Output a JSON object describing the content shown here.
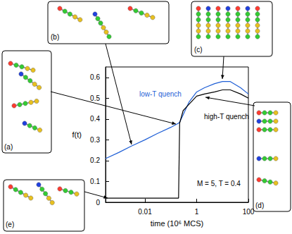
{
  "chart_data": {
    "type": "line",
    "x_label": "time (10⁶ MCS)",
    "y_label": "f(t)",
    "annotation": "M = 5, T = 0.4",
    "panel_labels": [
      "(a)",
      "(b)",
      "(c)",
      "(d)",
      "(e)"
    ],
    "x": [
      0.0003,
      0.001,
      0.003,
      0.01,
      0.03,
      0.1,
      0.2,
      0.22,
      0.3,
      0.5,
      1,
      2,
      5,
      10,
      20,
      50,
      100
    ],
    "series": [
      {
        "name": "low-T quench",
        "color": "#1f5fd6",
        "values": [
          0.21,
          0.24,
          0.27,
          0.3,
          0.33,
          0.36,
          0.38,
          0.385,
          0.42,
          0.48,
          0.53,
          0.55,
          0.57,
          0.58,
          0.58,
          0.55,
          0.52
        ]
      },
      {
        "name": "high-T quench",
        "color": "#000000",
        "values": [
          0.02,
          0.02,
          0.02,
          0.02,
          0.02,
          0.02,
          0.02,
          0.38,
          0.44,
          0.47,
          0.51,
          0.52,
          0.53,
          0.54,
          0.54,
          0.52,
          0.5
        ]
      }
    ],
    "xlim": [
      0.0003,
      100
    ],
    "xticks": [
      0.01,
      1,
      100
    ],
    "ylim": [
      0,
      0.65
    ],
    "yticks": [
      0,
      0.1,
      0.2,
      0.3,
      0.4,
      0.5,
      0.6
    ],
    "log": "x",
    "grid": false
  }
}
